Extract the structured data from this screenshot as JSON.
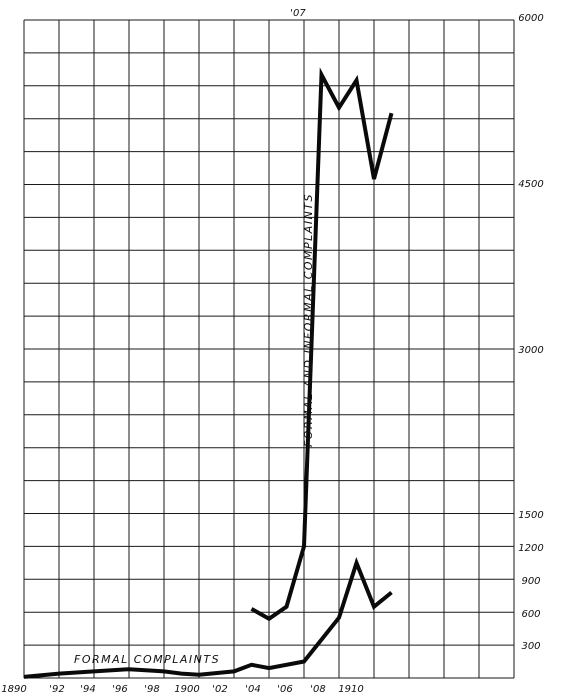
{
  "chart_data": {
    "type": "line",
    "title": "",
    "xlabel": "",
    "ylabel": "",
    "x_tick_labels": [
      "1890",
      "'92",
      "'94",
      "'96",
      "'98",
      "1900",
      "'02",
      "'04",
      "'06",
      "'08",
      "1910"
    ],
    "top_annotation": "'07",
    "y_tick_labels": [
      "300",
      "600",
      "900",
      "1200",
      "1500",
      "3000",
      "4500",
      "6000"
    ],
    "xlim": [
      1890,
      1918
    ],
    "ylim": [
      0,
      6000
    ],
    "grid": true,
    "series": [
      {
        "name": "FORMAL AND INFORMAL COMPLAINTS",
        "x": [
          1903,
          1904,
          1905,
          1906,
          1907,
          1908,
          1909,
          1910,
          1911
        ],
        "y": [
          630,
          540,
          650,
          1200,
          5500,
          5200,
          5450,
          4550,
          5150
        ]
      },
      {
        "name": "FORMAL COMPLAINTS",
        "x": [
          1890,
          1892,
          1894,
          1896,
          1898,
          1899,
          1900,
          1902,
          1903,
          1904,
          1906,
          1907,
          1908,
          1909,
          1910,
          1911
        ],
        "y": [
          10,
          40,
          60,
          80,
          60,
          40,
          30,
          60,
          120,
          90,
          150,
          350,
          550,
          1050,
          650,
          780
        ]
      }
    ]
  }
}
